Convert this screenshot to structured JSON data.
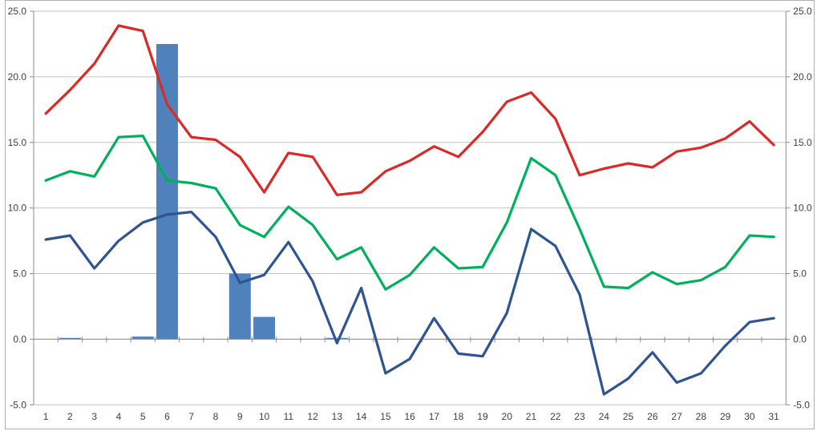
{
  "chart_data": {
    "type": "combo",
    "title": "",
    "xlabel": "",
    "ylabel": "",
    "categories": [
      1,
      2,
      3,
      4,
      5,
      6,
      7,
      8,
      9,
      10,
      11,
      12,
      13,
      14,
      15,
      16,
      17,
      18,
      19,
      20,
      21,
      22,
      23,
      24,
      25,
      26,
      27,
      28,
      29,
      30,
      31
    ],
    "x_tick_labels": [
      "1",
      "2",
      "3",
      "4",
      "5",
      "6",
      "7",
      "8",
      "9",
      "10",
      "11",
      "12",
      "13",
      "14",
      "15",
      "16",
      "17",
      "18",
      "19",
      "20",
      "21",
      "22",
      "23",
      "24",
      "25",
      "26",
      "27",
      "28",
      "29",
      "30",
      "31"
    ],
    "y_tick_labels_left": [
      "25.0",
      "20.0",
      "15.0",
      "10.0",
      "5.0",
      "0.0",
      "-5.0"
    ],
    "y_tick_labels_right": [
      "25.0",
      "20.0",
      "15.0",
      "10.0",
      "5.0",
      "0.0",
      "-5.0"
    ],
    "y_tick_values": [
      25,
      20,
      15,
      10,
      5,
      0,
      -5
    ],
    "ylim": [
      -5,
      25
    ],
    "grid": true,
    "legend": "none",
    "dual_axis": true,
    "series": [
      {
        "name": "bars",
        "type": "bar",
        "color": "#4f81bd",
        "values": [
          0,
          0.1,
          0,
          0,
          0.2,
          22.5,
          0,
          0,
          5.0,
          1.7,
          0,
          0,
          0.1,
          0,
          0,
          0,
          0,
          0,
          0,
          0,
          0,
          0,
          0,
          0,
          0,
          0,
          0,
          0,
          0,
          0,
          0
        ]
      },
      {
        "name": "red-line",
        "type": "line",
        "color": "#d92a26",
        "values": [
          17.2,
          19.0,
          21.0,
          23.9,
          23.5,
          17.9,
          15.4,
          15.2,
          13.9,
          11.2,
          14.2,
          13.9,
          11.0,
          11.2,
          12.8,
          13.6,
          14.7,
          13.9,
          15.8,
          18.1,
          18.8,
          16.8,
          12.5,
          13.0,
          13.4,
          13.1,
          14.3,
          14.6,
          15.3,
          16.6,
          14.8
        ]
      },
      {
        "name": "green-line",
        "type": "line",
        "color": "#00b05c",
        "values": [
          12.1,
          12.8,
          12.4,
          15.4,
          15.5,
          12.1,
          11.9,
          11.5,
          8.7,
          7.8,
          10.1,
          8.7,
          6.1,
          7.0,
          3.8,
          4.9,
          7.0,
          5.4,
          5.5,
          8.9,
          13.8,
          12.5,
          8.4,
          4.0,
          3.9,
          5.1,
          4.2,
          4.5,
          5.5,
          7.9,
          7.8
        ]
      },
      {
        "name": "navy-line",
        "type": "line",
        "color": "#2e5491",
        "values": [
          7.6,
          7.9,
          5.4,
          7.5,
          8.9,
          9.5,
          9.7,
          7.8,
          4.3,
          4.9,
          7.4,
          4.4,
          -0.3,
          3.9,
          -2.6,
          -1.5,
          1.6,
          -1.1,
          -1.3,
          2.0,
          8.4,
          7.1,
          3.4,
          -4.2,
          -3.0,
          -1.0,
          -3.3,
          -2.6,
          -0.5,
          1.3,
          1.6
        ]
      }
    ],
    "style": {
      "gridline_color": "#c3c3c3",
      "axis_color": "#8c8c8c",
      "tick_color": "#8c8c8c",
      "label_color": "#3f3f3f",
      "background": "#ffffff"
    }
  }
}
